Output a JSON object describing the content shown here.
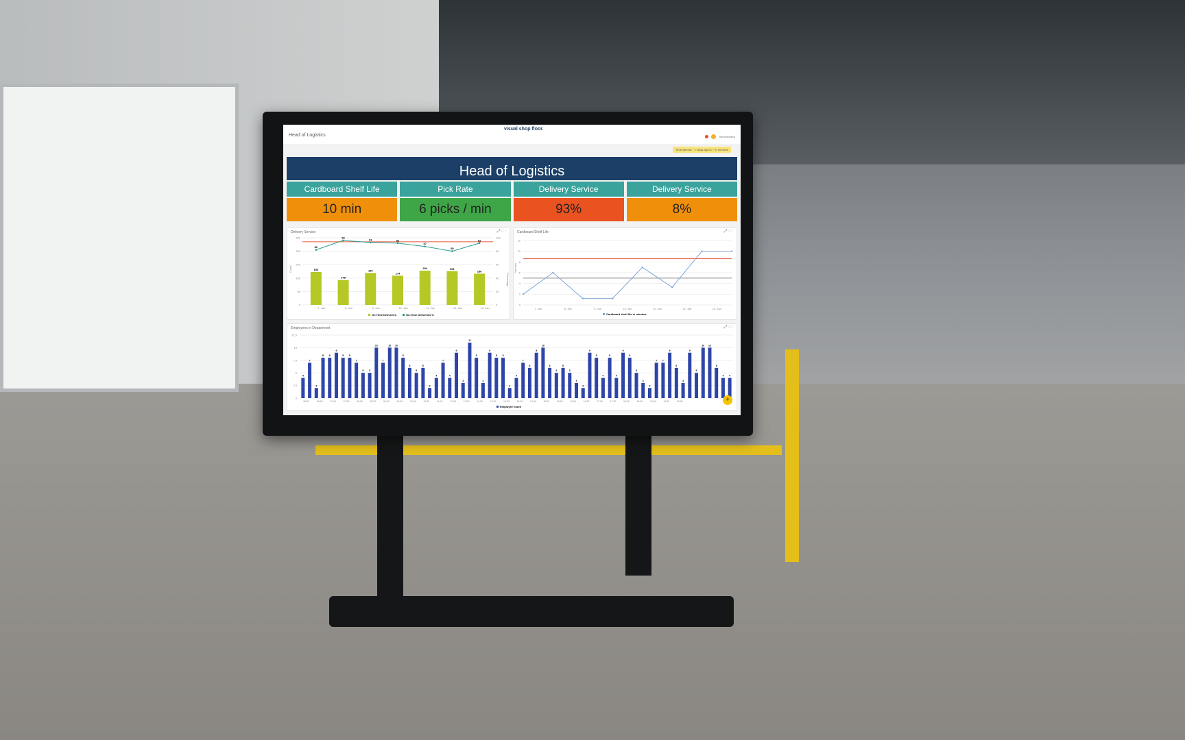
{
  "header": {
    "breadcrumb": "Head of Logistics",
    "logo": "visual shop floor.",
    "user": "Administrator",
    "time_interval": "Time interval: ~ 7 days ago to ~ in 15 hours"
  },
  "banner": {
    "title": "Head of Logistics"
  },
  "kpis": [
    {
      "label": "Cardboard Shelf Life",
      "value": "10 min",
      "color": "#f0900a"
    },
    {
      "label": "Pick Rate",
      "value": "6 picks / min",
      "color": "#3fa648"
    },
    {
      "label": "Delivery Service",
      "value": "93%",
      "color": "#ea5220"
    },
    {
      "label": "Delivery Service",
      "value": "8%",
      "color": "#f0900a"
    }
  ],
  "chart_data": [
    {
      "type": "bar",
      "title": "Delivery Service",
      "ylabel": "Count",
      "y2label": "Percentage",
      "categories": [
        "7. Jan",
        "8. Jan",
        "9. Jan",
        "10. Jan",
        "11. Jan",
        "12. Jan",
        "13. Jan"
      ],
      "ylim": [
        0,
        400
      ],
      "y2lim": [
        0,
        100
      ],
      "yticks": [
        0,
        80,
        160,
        240,
        320,
        400
      ],
      "y2ticks": [
        0,
        20,
        40,
        60,
        80,
        100
      ],
      "series": [
        {
          "name": "On Time Deliveries",
          "type": "bar",
          "axis": "left",
          "color": "#b5c825",
          "values": [
            196,
            148,
            190,
            174,
            204,
            201,
            186
          ]
        },
        {
          "name": "On-Time Deliveries %",
          "type": "line",
          "axis": "right",
          "color": "#2a9d8f",
          "values": [
            82,
            96,
            93,
            92,
            87,
            80,
            92
          ]
        }
      ],
      "reference_line": {
        "axis": "right",
        "value": 94,
        "color": "#e8553a"
      },
      "legend": "bottom"
    },
    {
      "type": "line",
      "title": "Cardboard Shelf Life",
      "ylabel": "Minutes",
      "categories": [
        "7. Jan",
        "8. Jan",
        "9. Jan",
        "10. Jan",
        "11. Jan",
        "12. Jan",
        "13. Jan"
      ],
      "x": [
        6.5,
        7.5,
        8.5,
        9.5,
        10.5,
        11.5,
        12.5,
        13.5
      ],
      "ylim": [
        0,
        12
      ],
      "yticks": [
        0,
        2,
        4,
        6,
        8,
        10,
        12
      ],
      "series": [
        {
          "name": "Cardboard shelf life in minutes",
          "color": "#7ea6d8",
          "values": [
            2,
            6,
            1.2,
            1.2,
            7,
            3.3,
            10,
            10
          ]
        }
      ],
      "reference_lines": [
        {
          "value": 8.6,
          "color": "#e8553a"
        },
        {
          "value": 5,
          "color": "#888888"
        }
      ],
      "legend": "bottom"
    },
    {
      "type": "bar",
      "title": "Employees in Department",
      "ylim": [
        0,
        12.5
      ],
      "yticks": [
        0,
        2.5,
        5,
        7.5,
        10,
        12.5
      ],
      "xlabels": [
        "06:00",
        "06:30",
        "07:00",
        "07:30",
        "08:00",
        "08:30",
        "09:00",
        "09:30",
        "10:00",
        "10:30",
        "11:00",
        "11:30",
        "12:00",
        "12:30",
        "13:00",
        "13:30",
        "14:00",
        "14:30",
        "15:00",
        "15:30",
        "16:00",
        "16:30",
        "17:00",
        "17:30",
        "18:00",
        "18:30",
        "19:00",
        "19:30",
        "20:00"
      ],
      "series": [
        {
          "name": "Employee hours",
          "color": "#2e45a8",
          "values": [
            4,
            7,
            2,
            8,
            8,
            9,
            8,
            8,
            7,
            5,
            5,
            10,
            7,
            10,
            10,
            8,
            6,
            5,
            6,
            2,
            4,
            7,
            4,
            9,
            3,
            11,
            8,
            3,
            9,
            8,
            8,
            2,
            4,
            7,
            6,
            9,
            10,
            6,
            5,
            6,
            5,
            3,
            2,
            9,
            8,
            4,
            8,
            4,
            9,
            8,
            5,
            3,
            2,
            7,
            7,
            9,
            6,
            3,
            9,
            5,
            10,
            10,
            6,
            4,
            4
          ]
        }
      ],
      "legend": "bottom"
    }
  ]
}
